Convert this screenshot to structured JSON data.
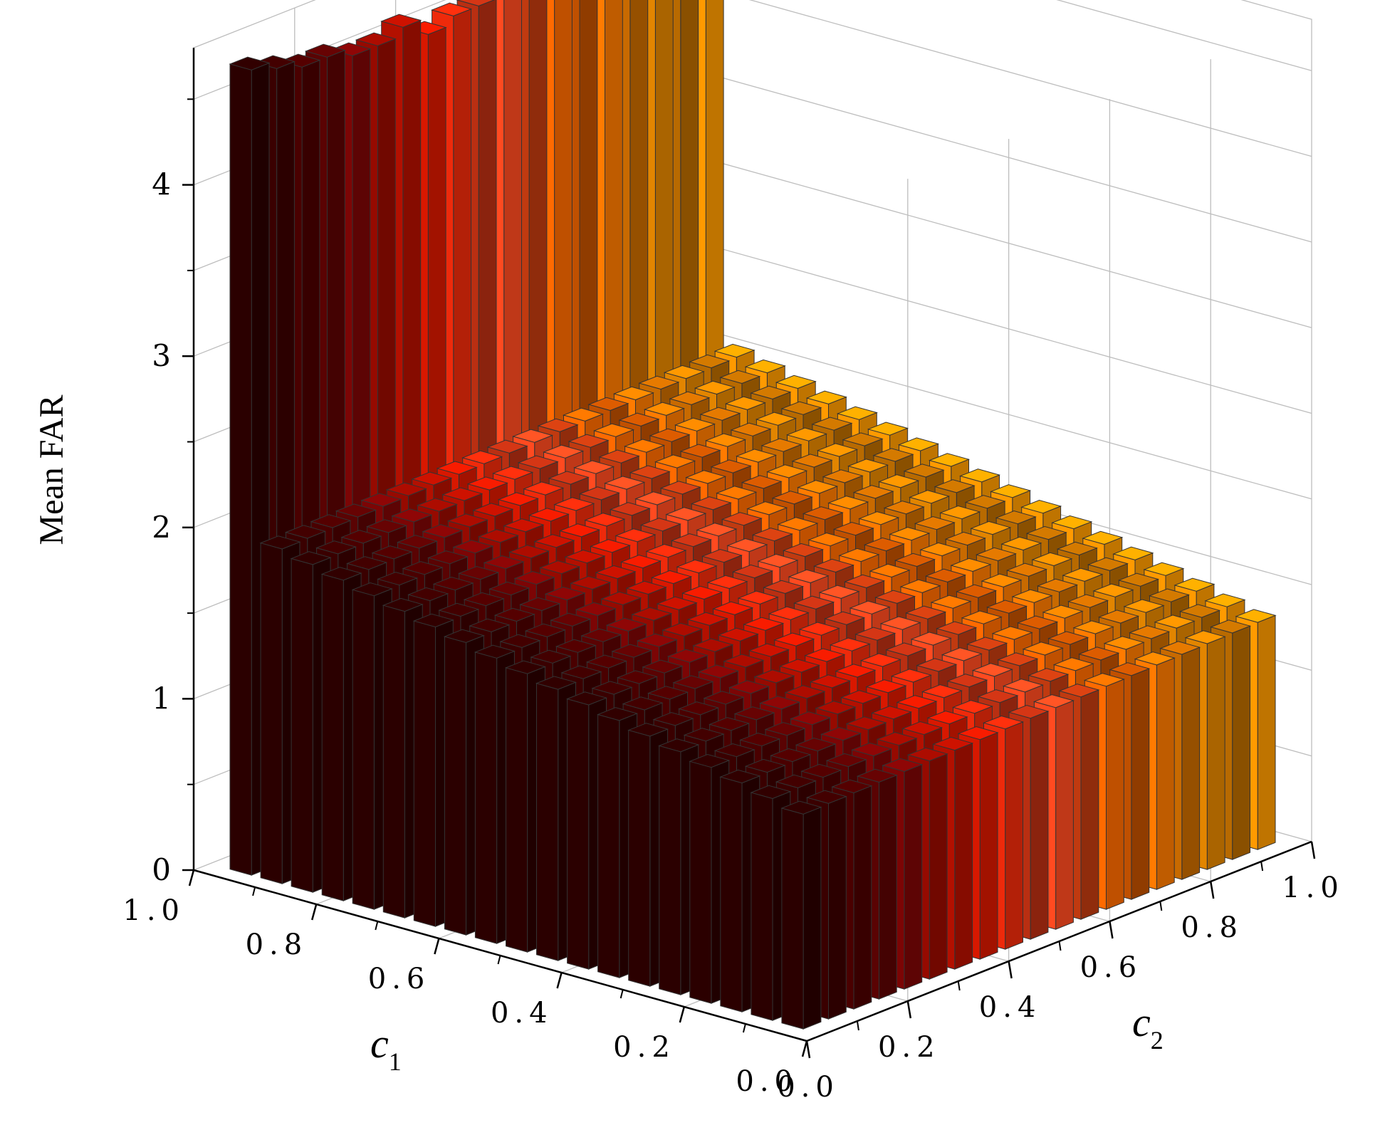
{
  "chart_data": {
    "type": "bar3d",
    "zlabel": "Mean FAR",
    "xlabel": "c",
    "xlabel_sub": "1",
    "ylabel": "c",
    "ylabel_sub": "2",
    "c1_ticks": [
      "1.0",
      "0.8",
      "0.6",
      "0.4",
      "0.2",
      "0.0"
    ],
    "c2_ticks": [
      "0.0",
      "0.2",
      "0.4",
      "0.6",
      "0.8",
      "1.0"
    ],
    "z_ticks": [
      "0",
      "1",
      "2",
      "3",
      "4"
    ],
    "zlim": [
      0,
      4.8
    ],
    "grid": true,
    "c1_values": [
      0.95,
      0.9,
      0.85,
      0.8,
      0.75,
      0.7,
      0.65,
      0.6,
      0.55,
      0.5,
      0.45,
      0.4,
      0.35,
      0.3,
      0.25,
      0.2,
      0.15,
      0.1,
      0.05
    ],
    "c2_values": [
      0.05,
      0.1,
      0.15,
      0.2,
      0.25,
      0.3,
      0.35,
      0.4,
      0.45,
      0.5,
      0.55,
      0.6,
      0.65,
      0.7,
      0.75,
      0.8,
      0.85,
      0.9,
      0.95
    ],
    "wall_row_c1": 0.95,
    "wall_row_heights": [
      4.7,
      4.65,
      4.6,
      4.6,
      4.55,
      4.55,
      4.6,
      4.5,
      4.55,
      4.55,
      4.55,
      4.6,
      4.55,
      4.6,
      4.55,
      4.6,
      4.7,
      4.75,
      4.8
    ],
    "inner_height_at_c1_high": 1.95,
    "inner_height_at_c1_low": 1.25,
    "colors": [
      "#2a0000",
      "#5c0000",
      "#8b0a00",
      "#c81a00",
      "#e62a10",
      "#b03010",
      "#ff5a00",
      "#c06010",
      "#ff8c00",
      "#e38a00"
    ]
  }
}
